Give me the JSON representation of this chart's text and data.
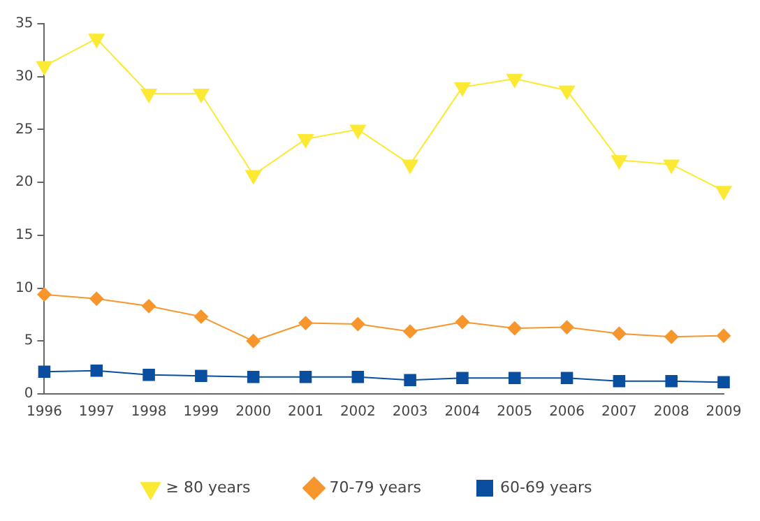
{
  "chart_data": {
    "type": "line",
    "categories": [
      "1996",
      "1997",
      "1998",
      "1999",
      "2000",
      "2001",
      "2002",
      "2003",
      "2004",
      "2005",
      "2006",
      "2007",
      "2008",
      "2009"
    ],
    "series": [
      {
        "name": "≥ 80 years",
        "color": "#fce933",
        "marker": "triangle",
        "values": [
          31,
          33.6,
          28.4,
          28.4,
          20.7,
          24.1,
          25,
          21.7,
          29,
          29.8,
          28.7,
          22.1,
          21.7,
          19.2
        ]
      },
      {
        "name": "70-79 years",
        "color": "#f7962d",
        "marker": "diamond",
        "values": [
          9.4,
          9.0,
          8.3,
          7.3,
          5.0,
          6.7,
          6.6,
          5.9,
          6.8,
          6.2,
          6.3,
          5.7,
          5.4,
          5.5
        ]
      },
      {
        "name": "60-69 years",
        "color": "#0a4ea0",
        "marker": "square",
        "values": [
          2.1,
          2.2,
          1.8,
          1.7,
          1.6,
          1.6,
          1.6,
          1.3,
          1.5,
          1.5,
          1.5,
          1.2,
          1.2,
          1.1
        ]
      }
    ],
    "ylim": [
      0,
      35
    ],
    "yticks": [
      0,
      5,
      10,
      15,
      20,
      25,
      30,
      35
    ],
    "grid": false,
    "legend": "bottom"
  }
}
